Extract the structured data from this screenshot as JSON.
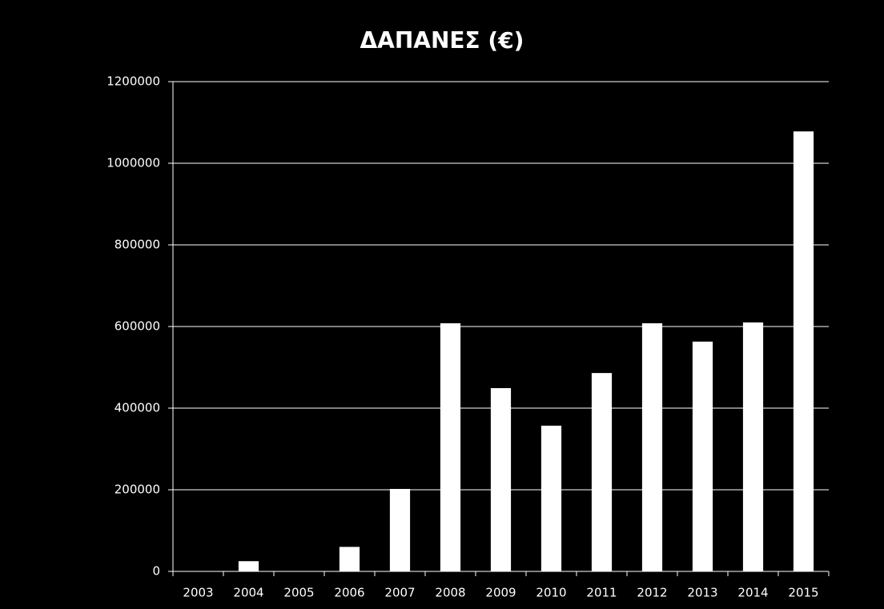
{
  "chart_data": {
    "type": "bar",
    "title": "ΔΑΠΑΝΕΣ (€)",
    "categories": [
      "2003",
      "2004",
      "2005",
      "2006",
      "2007",
      "2008",
      "2009",
      "2010",
      "2011",
      "2012",
      "2013",
      "2014",
      "2015"
    ],
    "values": [
      0,
      25000,
      0,
      60000,
      202000,
      608000,
      449000,
      357000,
      486000,
      608000,
      563000,
      610000,
      1078000
    ],
    "color": "#ffffff",
    "ylim": [
      0,
      1200000
    ],
    "yticks": [
      0,
      200000,
      400000,
      600000,
      800000,
      1000000,
      1200000
    ],
    "grid": true
  }
}
